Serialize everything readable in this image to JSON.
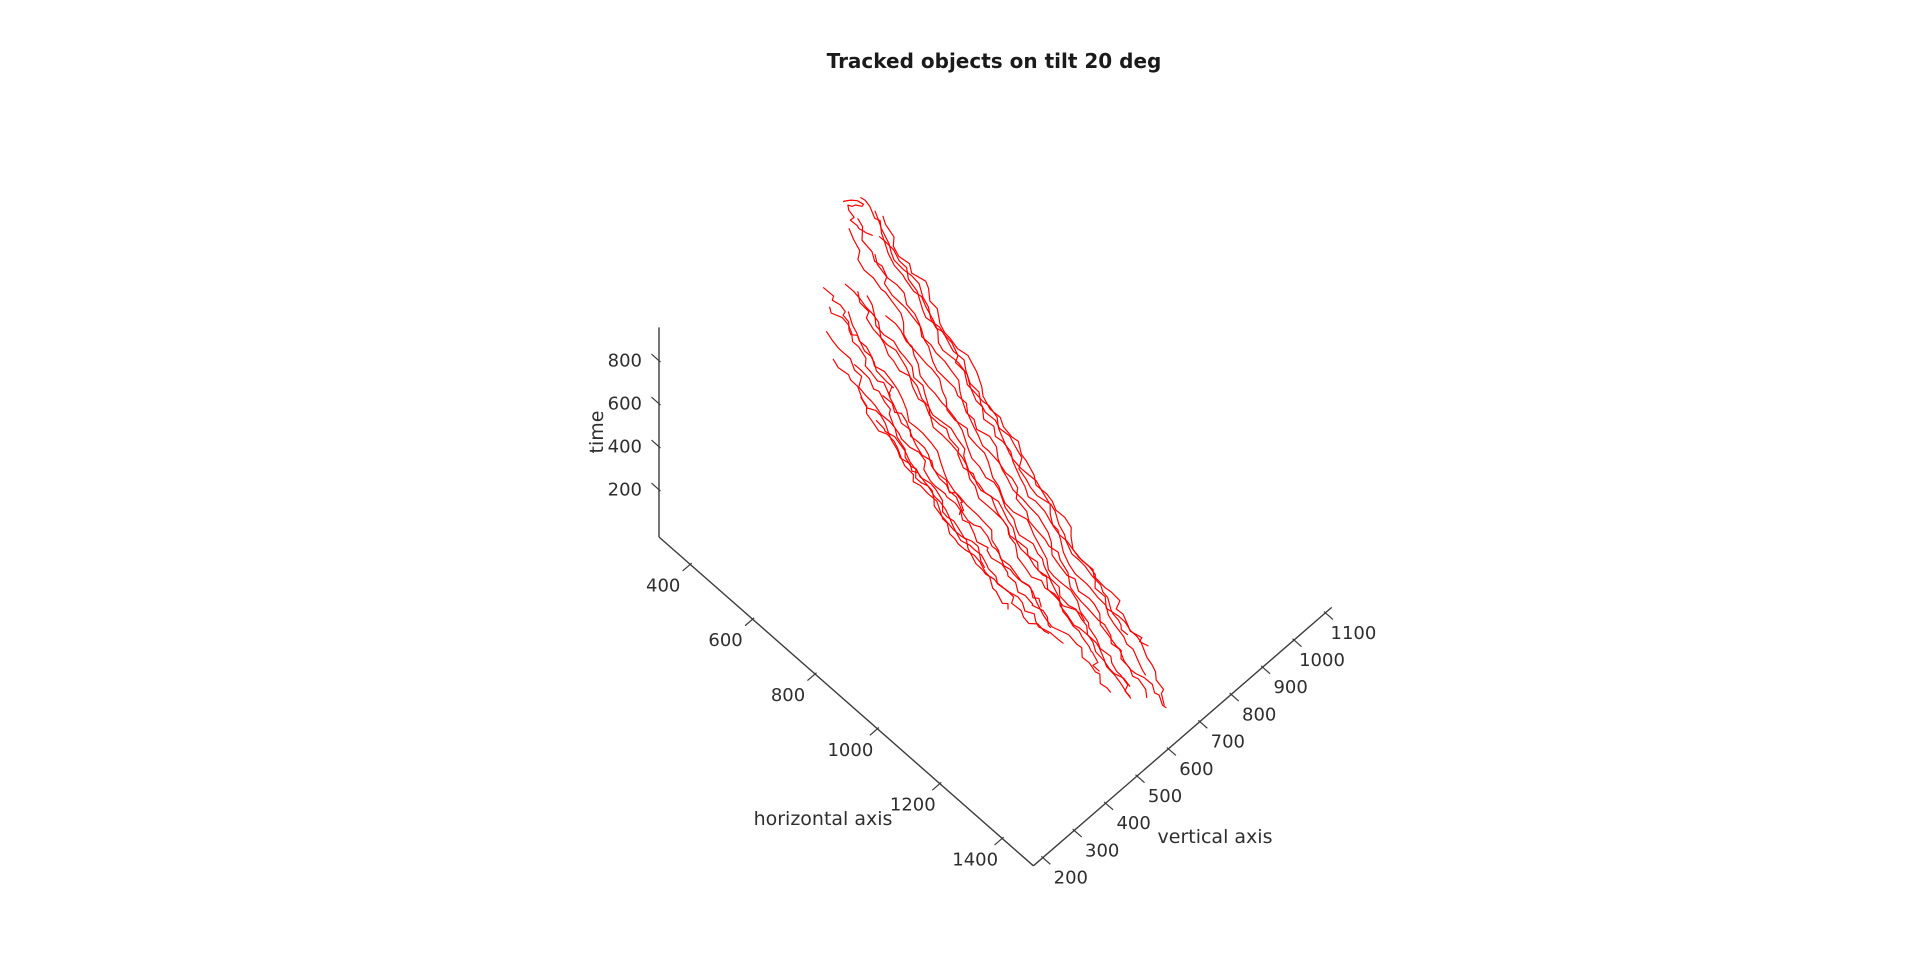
{
  "figure": {
    "background": "#ffffff",
    "title": "Tracked objects on tilt 20 deg"
  },
  "chart_data": {
    "type": "line3d",
    "title": "Tracked objects on tilt 20 deg",
    "view": "tilt 20 deg",
    "line_color": "#ff0000",
    "axis_color": "#3c3c3c",
    "text_color": "#2e2e2e",
    "legend": "none",
    "grid": false,
    "axes": {
      "x": {
        "label": "horizontal axis",
        "ticks": [
          400,
          600,
          800,
          1000,
          1200,
          1400
        ],
        "range": [
          300,
          1500
        ]
      },
      "y": {
        "label": "vertical axis",
        "ticks": [
          200,
          300,
          400,
          500,
          600,
          700,
          800,
          900,
          1000,
          1100
        ],
        "range": [
          170,
          1120
        ]
      },
      "z": {
        "label": "time",
        "ticks": [
          200,
          400,
          600,
          800
        ],
        "range": [
          -20,
          955
        ]
      }
    },
    "tracks": [
      [
        [
          372,
          741,
          928
        ],
        [
          415,
          760,
          852
        ],
        [
          488,
          733,
          770
        ],
        [
          556,
          752,
          688
        ],
        [
          634,
          728,
          604
        ],
        [
          706,
          748,
          522
        ],
        [
          781,
          726,
          438
        ],
        [
          852,
          742,
          356
        ],
        [
          931,
          719,
          276
        ],
        [
          1008,
          737,
          198
        ],
        [
          1087,
          714,
          122
        ],
        [
          1168,
          731,
          58
        ],
        [
          1258,
          708,
          22
        ],
        [
          1338,
          688,
          6
        ]
      ],
      [
        [
          396,
          708,
          902
        ],
        [
          468,
          690,
          818
        ],
        [
          540,
          712,
          736
        ],
        [
          615,
          694,
          650
        ],
        [
          688,
          713,
          566
        ],
        [
          760,
          692,
          484
        ],
        [
          838,
          710,
          402
        ],
        [
          912,
          690,
          320
        ],
        [
          988,
          708,
          240
        ],
        [
          1065,
          688,
          162
        ],
        [
          1142,
          704,
          92
        ],
        [
          1222,
          686,
          44
        ],
        [
          1305,
          670,
          20
        ],
        [
          1382,
          648,
          8
        ]
      ],
      [
        [
          422,
          762,
          878
        ],
        [
          490,
          745,
          800
        ],
        [
          565,
          765,
          722
        ],
        [
          640,
          742,
          640
        ],
        [
          712,
          760,
          560
        ],
        [
          790,
          738,
          480
        ],
        [
          862,
          756,
          400
        ],
        [
          940,
          735,
          322
        ],
        [
          1015,
          752,
          246
        ],
        [
          1092,
          730,
          172
        ],
        [
          1170,
          746,
          104
        ],
        [
          1243,
          728,
          60
        ],
        [
          1296,
          738,
          24
        ]
      ],
      [
        [
          383,
          693,
          858
        ],
        [
          452,
          672,
          780
        ],
        [
          528,
          690,
          700
        ],
        [
          601,
          670,
          622
        ],
        [
          678,
          688,
          542
        ],
        [
          748,
          668,
          464
        ],
        [
          824,
          686,
          386
        ],
        [
          900,
          666,
          310
        ],
        [
          974,
          684,
          234
        ],
        [
          1051,
          664,
          160
        ],
        [
          1128,
          680,
          92
        ],
        [
          1207,
          662,
          40
        ],
        [
          1288,
          646,
          12
        ],
        [
          1357,
          622,
          6
        ]
      ],
      [
        [
          442,
          731,
          848
        ],
        [
          512,
          748,
          772
        ],
        [
          586,
          726,
          696
        ],
        [
          660,
          744,
          618
        ],
        [
          733,
          722,
          542
        ],
        [
          810,
          740,
          466
        ],
        [
          884,
          718,
          390
        ],
        [
          960,
          736,
          314
        ],
        [
          1036,
          714,
          240
        ],
        [
          1113,
          732,
          168
        ],
        [
          1190,
          710,
          100
        ],
        [
          1270,
          728,
          48
        ],
        [
          1352,
          706,
          16
        ],
        [
          1424,
          662,
          8
        ]
      ],
      [
        [
          412,
          747,
          908
        ],
        [
          480,
          730,
          828
        ],
        [
          552,
          748,
          748
        ],
        [
          628,
          726,
          668
        ],
        [
          700,
          744,
          588
        ],
        [
          776,
          722,
          508
        ],
        [
          850,
          740,
          430
        ],
        [
          925,
          718,
          352
        ],
        [
          1000,
          736,
          276
        ],
        [
          1076,
          714,
          202
        ],
        [
          1152,
          730,
          134
        ],
        [
          1210,
          712,
          96
        ],
        [
          1266,
          702,
          84
        ]
      ],
      [
        [
          456,
          703,
          818
        ],
        [
          528,
          686,
          742
        ],
        [
          602,
          704,
          664
        ],
        [
          676,
          682,
          586
        ],
        [
          752,
          700,
          508
        ],
        [
          826,
          678,
          432
        ],
        [
          902,
          696,
          356
        ],
        [
          978,
          674,
          282
        ],
        [
          1054,
          692,
          210
        ],
        [
          1131,
          670,
          140
        ],
        [
          1209,
          686,
          78
        ],
        [
          1290,
          668,
          34
        ],
        [
          1368,
          680,
          10
        ],
        [
          1430,
          662,
          4
        ]
      ],
      [
        [
          392,
          672,
          638
        ],
        [
          460,
          690,
          566
        ],
        [
          534,
          668,
          494
        ],
        [
          608,
          686,
          422
        ],
        [
          682,
          664,
          352
        ],
        [
          757,
          682,
          284
        ],
        [
          832,
          660,
          218
        ],
        [
          908,
          678,
          154
        ],
        [
          984,
          656,
          96
        ],
        [
          1062,
          672,
          52
        ],
        [
          1140,
          654,
          24
        ],
        [
          1212,
          640,
          16
        ],
        [
          1258,
          620,
          8
        ]
      ],
      [
        [
          432,
          642,
          598
        ],
        [
          502,
          624,
          528
        ],
        [
          574,
          640,
          458
        ],
        [
          648,
          620,
          390
        ],
        [
          722,
          638,
          324
        ],
        [
          796,
          618,
          258
        ],
        [
          870,
          634,
          196
        ],
        [
          946,
          616,
          138
        ],
        [
          1022,
          632,
          86
        ],
        [
          1098,
          614,
          44
        ],
        [
          1176,
          630,
          16
        ],
        [
          1252,
          614,
          4
        ],
        [
          1312,
          602,
          2
        ]
      ],
      [
        [
          402,
          702,
          578
        ],
        [
          470,
          684,
          512
        ],
        [
          544,
          700,
          446
        ],
        [
          618,
          680,
          382
        ],
        [
          692,
          696,
          318
        ],
        [
          766,
          676,
          256
        ],
        [
          840,
          692,
          196
        ],
        [
          916,
          672,
          140
        ],
        [
          992,
          688,
          90
        ],
        [
          1068,
          670,
          48
        ],
        [
          1146,
          684,
          18
        ]
      ],
      [
        [
          472,
          662,
          698
        ],
        [
          542,
          646,
          626
        ],
        [
          616,
          662,
          554
        ],
        [
          690,
          642,
          484
        ],
        [
          764,
          658,
          414
        ],
        [
          838,
          638,
          346
        ],
        [
          914,
          654,
          280
        ],
        [
          990,
          636,
          216
        ],
        [
          1066,
          652,
          156
        ],
        [
          1142,
          634,
          102
        ],
        [
          1220,
          648,
          56
        ],
        [
          1296,
          632,
          22
        ],
        [
          1352,
          624,
          6
        ]
      ],
      [
        [
          382,
          622,
          468
        ],
        [
          444,
          636,
          404
        ],
        [
          510,
          618,
          342
        ],
        [
          576,
          632,
          282
        ],
        [
          642,
          614,
          226
        ],
        [
          710,
          628,
          172
        ],
        [
          778,
          612,
          124
        ],
        [
          846,
          624,
          82
        ],
        [
          902,
          608,
          52
        ]
      ],
      [
        [
          424,
          602,
          418
        ],
        [
          488,
          616,
          356
        ],
        [
          554,
          598,
          298
        ],
        [
          620,
          612,
          242
        ],
        [
          686,
          596,
          190
        ],
        [
          754,
          610,
          142
        ],
        [
          822,
          594,
          100
        ],
        [
          890,
          606,
          64
        ],
        [
          958,
          590,
          34
        ],
        [
          1002,
          584,
          16
        ]
      ],
      [
        [
          452,
          642,
          378
        ],
        [
          516,
          656,
          318
        ],
        [
          582,
          638,
          262
        ],
        [
          648,
          652,
          208
        ],
        [
          716,
          636,
          158
        ],
        [
          784,
          650,
          112
        ],
        [
          852,
          634,
          74
        ],
        [
          920,
          646,
          42
        ],
        [
          988,
          630,
          18
        ],
        [
          1056,
          642,
          4
        ],
        [
          1098,
          624,
          2
        ]
      ],
      [
        [
          502,
          612,
          328
        ],
        [
          566,
          626,
          272
        ],
        [
          632,
          608,
          218
        ],
        [
          698,
          622,
          168
        ],
        [
          766,
          606,
          122
        ],
        [
          834,
          618,
          82
        ],
        [
          902,
          602,
          48
        ],
        [
          970,
          614,
          22
        ],
        [
          1038,
          598,
          6
        ],
        [
          1106,
          610,
          2
        ]
      ],
      [
        [
          522,
          662,
          298
        ],
        [
          586,
          674,
          244
        ],
        [
          652,
          658,
          192
        ],
        [
          718,
          670,
          144
        ],
        [
          786,
          654,
          100
        ],
        [
          854,
          666,
          62
        ],
        [
          922,
          650,
          32
        ],
        [
          990,
          662,
          12
        ],
        [
          1046,
          646,
          4
        ]
      ],
      [
        [
          362,
          652,
          518
        ],
        [
          420,
          664,
          458
        ],
        [
          480,
          648,
          400
        ],
        [
          540,
          660,
          344
        ],
        [
          600,
          644,
          292
        ],
        [
          662,
          656,
          242
        ],
        [
          724,
          642,
          196
        ],
        [
          788,
          652,
          154
        ],
        [
          792,
          638,
          120
        ]
      ],
      [
        [
          562,
          632,
          758
        ],
        [
          630,
          648,
          682
        ],
        [
          700,
          630,
          608
        ],
        [
          772,
          644,
          534
        ],
        [
          844,
          626,
          462
        ],
        [
          916,
          640,
          392
        ],
        [
          988,
          624,
          324
        ],
        [
          1060,
          636,
          258
        ],
        [
          1132,
          620,
          196
        ],
        [
          1206,
          632,
          138
        ],
        [
          1278,
          616,
          86
        ],
        [
          1348,
          628,
          42
        ]
      ],
      [
        [
          332,
          662,
          558
        ],
        [
          374,
          674,
          516
        ],
        [
          418,
          658,
          476
        ],
        [
          462,
          670,
          438
        ],
        [
          508,
          656,
          402
        ],
        [
          552,
          666,
          368
        ],
        [
          556,
          652,
          352
        ]
      ],
      [
        [
          542,
          622,
          258
        ],
        [
          606,
          636,
          208
        ],
        [
          672,
          618,
          162
        ],
        [
          738,
          630,
          120
        ],
        [
          806,
          614,
          84
        ],
        [
          874,
          626,
          52
        ],
        [
          942,
          610,
          26
        ],
        [
          1010,
          622,
          8
        ],
        [
          1078,
          606,
          2
        ],
        [
          1146,
          616,
          0
        ]
      ],
      [
        [
          358,
          700,
          944
        ],
        [
          384,
          738,
          916
        ],
        [
          352,
          720,
          894
        ],
        [
          396,
          706,
          872
        ],
        [
          428,
          722,
          848
        ]
      ]
    ]
  }
}
